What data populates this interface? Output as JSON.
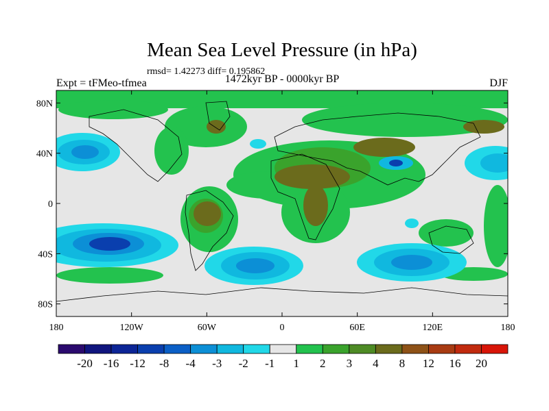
{
  "chart_data": {
    "type": "heatmap",
    "title": "Mean Sea Level Pressure (in hPa)",
    "stats_line": "rmsd= 1.42273 diff= 0.195862",
    "subtitle": "1472kyr BP - 0000kyr BP",
    "left_label": "Expt = tFMeo-tfmea",
    "right_label": "DJF",
    "x_ticks": [
      "180",
      "120W",
      "60W",
      "0",
      "60E",
      "120E",
      "180"
    ],
    "y_ticks": [
      "80N",
      "40N",
      "0",
      "40S",
      "80S"
    ],
    "x_tick_values": [
      -180,
      -120,
      -60,
      0,
      60,
      120,
      180
    ],
    "y_tick_values": [
      80,
      40,
      0,
      -40,
      -80
    ],
    "lon_range": [
      -180,
      180
    ],
    "lat_range": [
      -90,
      90
    ],
    "colorbar": {
      "colors": [
        "#2a0a6e",
        "#10157e",
        "#0c2596",
        "#0a3fae",
        "#0b5fc6",
        "#0c8fd6",
        "#10b8df",
        "#21d8e8",
        "#e6e6e6",
        "#23c24e",
        "#3aa32c",
        "#4e8b25",
        "#6b6b1c",
        "#8e5217",
        "#a83b12",
        "#c12a0e",
        "#d81508"
      ],
      "labels": [
        "-20",
        "-16",
        "-12",
        "-8",
        "-4",
        "-3",
        "-2",
        "-1",
        "1",
        "2",
        "3",
        "4",
        "8",
        "12",
        "16",
        "20"
      ]
    },
    "anomaly_regions": [
      {
        "name": "north-pacific-low",
        "level": "-2",
        "lon": -158,
        "lat": 40
      },
      {
        "name": "south-pacific-low",
        "level": "-8",
        "lon": -120,
        "lat": -33
      },
      {
        "name": "south-atlantic-low",
        "level": "-4",
        "lon": -15,
        "lat": -49
      },
      {
        "name": "south-indian-low",
        "level": "-4",
        "lon": 100,
        "lat": -48
      },
      {
        "name": "tibet-low",
        "level": "-4",
        "lon": 92,
        "lat": 33
      },
      {
        "name": "north-africa-high",
        "level": "4",
        "lon": 15,
        "lat": 15
      },
      {
        "name": "south-america-high",
        "level": "4",
        "lon": -60,
        "lat": -8
      },
      {
        "name": "central-asia-high",
        "level": "4",
        "lon": 80,
        "lat": 40
      },
      {
        "name": "north-pacific-high",
        "level": "4",
        "lon": 160,
        "lat": 55
      }
    ]
  }
}
